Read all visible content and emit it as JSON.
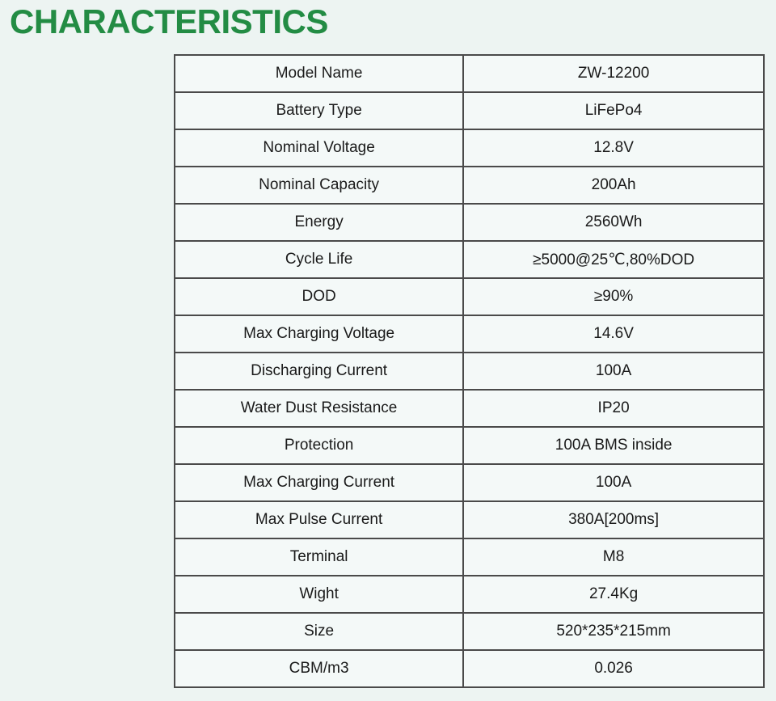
{
  "page": {
    "title": "CHARACTERISTICS"
  },
  "colors": {
    "heading_green": "#238c44",
    "page_background": "#edf4f2",
    "cell_background": "#f4f9f8",
    "table_border": "#4a4a4a",
    "cell_text": "#1a1a1a"
  },
  "table": {
    "rows": [
      {
        "label": "Model Name",
        "value": "ZW-12200"
      },
      {
        "label": "Battery Type",
        "value": "LiFePo4"
      },
      {
        "label": "Nominal Voltage",
        "value": "12.8V"
      },
      {
        "label": "Nominal Capacity",
        "value": "200Ah"
      },
      {
        "label": "Energy",
        "value": "2560Wh"
      },
      {
        "label": "Cycle Life",
        "value": "≥5000@25℃,80%DOD"
      },
      {
        "label": "DOD",
        "value": "≥90%"
      },
      {
        "label": "Max Charging Voltage",
        "value": "14.6V"
      },
      {
        "label": "Discharging Current",
        "value": "100A"
      },
      {
        "label": "Water Dust Resistance",
        "value": "IP20"
      },
      {
        "label": "Protection",
        "value": "100A BMS inside"
      },
      {
        "label": "Max Charging Current",
        "value": "100A"
      },
      {
        "label": "Max Pulse Current",
        "value": "380A[200ms]"
      },
      {
        "label": "Terminal",
        "value": "M8"
      },
      {
        "label": "Wight",
        "value": "27.4Kg"
      },
      {
        "label": "Size",
        "value": "520*235*215mm"
      },
      {
        "label": "CBM/m3",
        "value": "0.026"
      }
    ]
  }
}
